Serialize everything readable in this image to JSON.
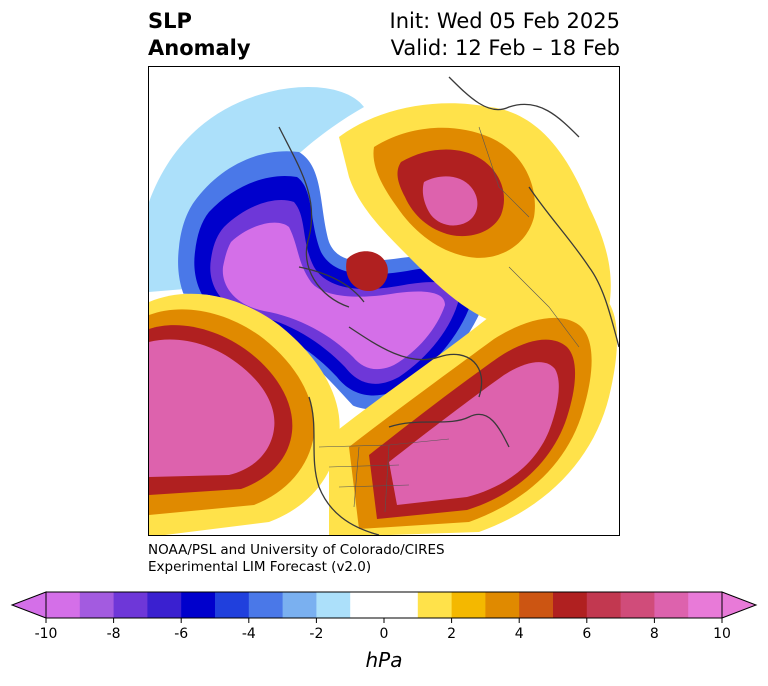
{
  "header": {
    "title_line1": "SLP",
    "title_line2": "Anomaly",
    "init_label": "Init: Wed 05 Feb 2025",
    "valid_label": "Valid: 12 Feb – 18 Feb"
  },
  "credit": {
    "line1": "NOAA/PSL and University of Colorado/CIRES",
    "line2": "Experimental LIM Forecast (v2.0)"
  },
  "colorbar": {
    "unit": "hPa",
    "ticks": [
      "-10",
      "-8",
      "-6",
      "-4",
      "-2",
      "0",
      "2",
      "4",
      "6",
      "8",
      "10"
    ],
    "tick_values": [
      -10,
      -8,
      -6,
      -4,
      -2,
      0,
      2,
      4,
      6,
      8,
      10
    ],
    "min": -10,
    "max": 10,
    "extend": "both",
    "colors": [
      "#d46fe8",
      "#a35be0",
      "#6e37d8",
      "#3a20d0",
      "#0000cc",
      "#2040dd",
      "#4a78e8",
      "#7ab0f0",
      "#ace0fa",
      "#ffffff",
      "#ffffff",
      "#ffe24a",
      "#f4b800",
      "#e08a00",
      "#cc5512",
      "#b02020",
      "#c23850",
      "#d04c7a",
      "#dd62ad",
      "#e87ad8"
    ]
  },
  "map": {
    "projection": "north-polar-stereographic",
    "field": "sea-level-pressure-anomaly"
  }
}
